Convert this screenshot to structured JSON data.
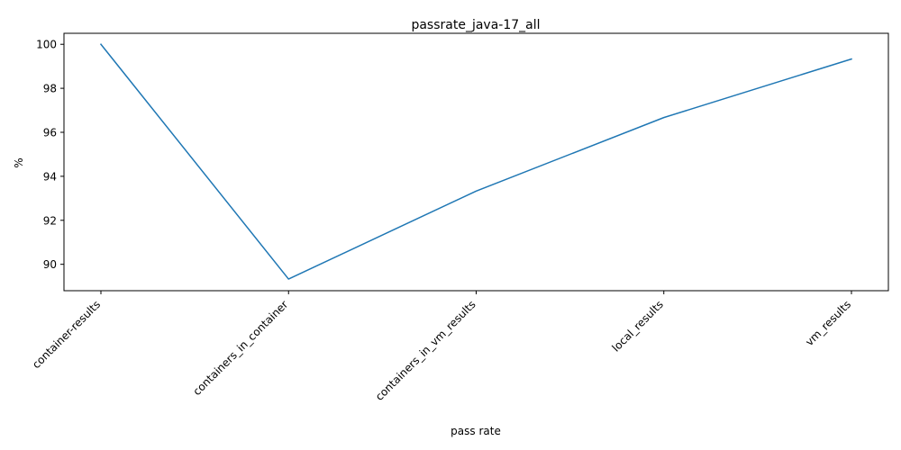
{
  "chart_data": {
    "type": "line",
    "title": "passrate_java-17_all",
    "xlabel": "pass rate",
    "ylabel": "%",
    "categories": [
      "container-results",
      "containers_in_container",
      "containers_in_vm_results",
      "local_results",
      "vm_results"
    ],
    "series": [
      {
        "values": [
          100.0,
          89.33,
          93.33,
          96.67,
          99.33
        ],
        "color": "#1f77b4"
      }
    ],
    "ylim": [
      88.8,
      100.5
    ],
    "yticks": [
      90,
      92,
      94,
      96,
      98,
      100
    ],
    "grid": false,
    "legend": "none"
  }
}
